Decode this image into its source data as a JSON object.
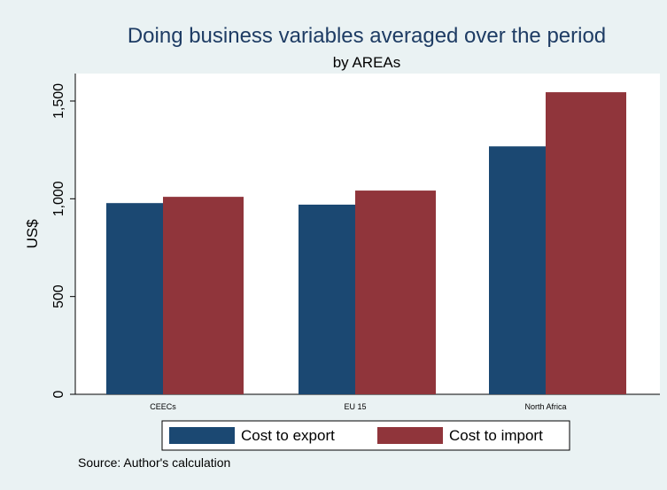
{
  "chart_data": {
    "type": "bar",
    "title": "Doing business variables averaged over the period",
    "subtitle": "by AREAs",
    "ylabel": "US$",
    "xlabel": "",
    "categories": [
      "CEECs",
      "EU 15",
      "North Africa"
    ],
    "series": [
      {
        "name": "Cost to export",
        "color": "#1b4872",
        "values": [
          978,
          970,
          1268
        ]
      },
      {
        "name": "Cost to import",
        "color": "#90353b",
        "values": [
          1010,
          1042,
          1545
        ]
      }
    ],
    "ylim": [
      0,
      1600
    ],
    "yticks": [
      0,
      500,
      1000,
      1500
    ],
    "ytick_labels": [
      "0",
      "500",
      "1,000",
      "1,500"
    ],
    "grid": false,
    "legend_position": "bottom",
    "note": "Source:  Author's calculation"
  }
}
